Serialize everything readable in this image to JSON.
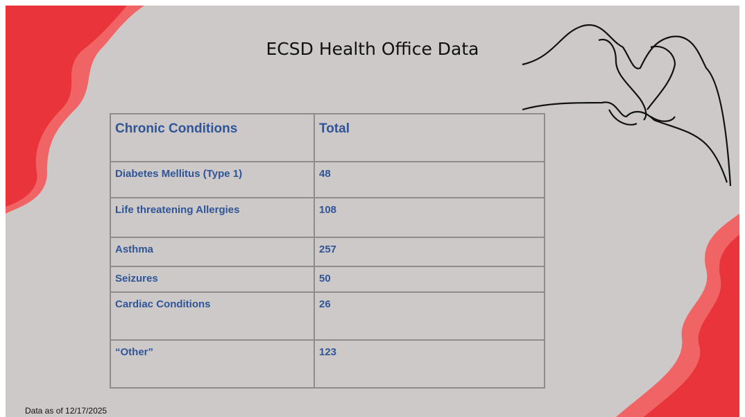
{
  "title": "ECSD Health Office Data",
  "table": {
    "header": [
      "Chronic Conditions",
      "Total"
    ],
    "rows": [
      [
        "Diabetes Mellitus (Type 1)",
        48
      ],
      [
        "Life threatening Allergies",
        108
      ],
      [
        "Asthma",
        257
      ],
      [
        "Seizures",
        50
      ],
      [
        "Cardiac Conditions",
        26
      ],
      [
        "“Other”",
        123
      ]
    ]
  },
  "footnote": "Data as of 12/17/2025"
}
